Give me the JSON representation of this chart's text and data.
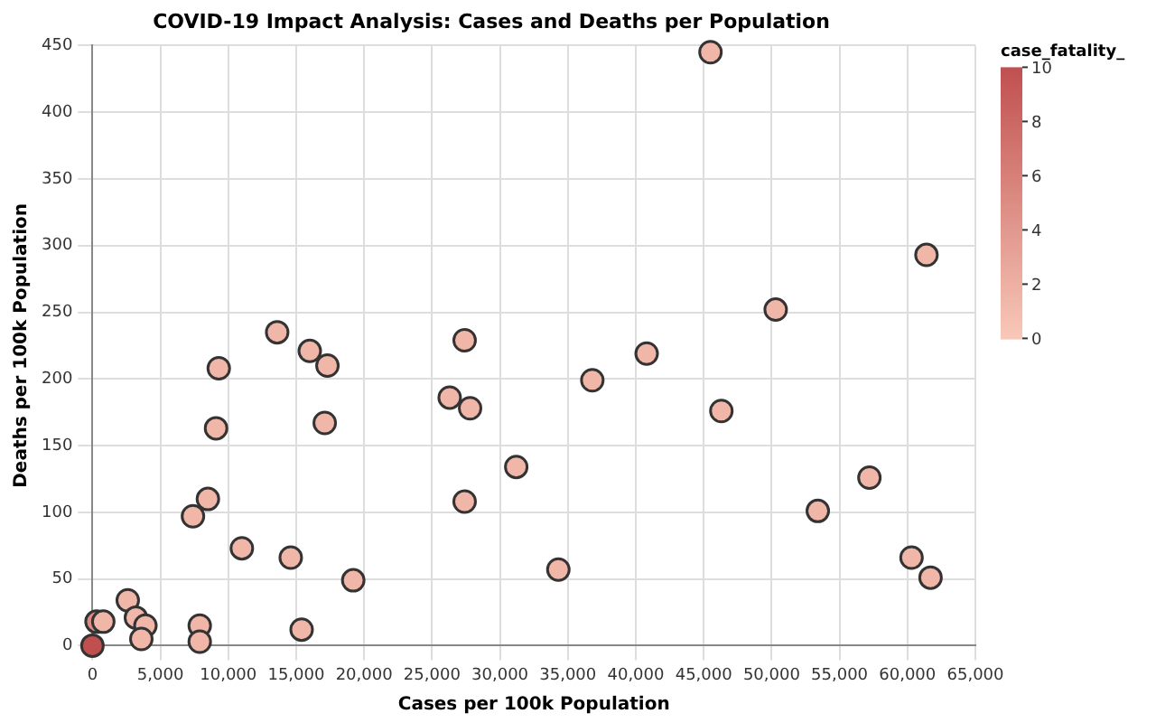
{
  "chart_data": {
    "type": "scatter",
    "title": "COVID-19 Impact Analysis: Cases and Deaths per Population",
    "xlabel": "Cases per 100k Population",
    "ylabel": "Deaths per 100k Population",
    "clabel": "case_fatality_",
    "x": [
      0,
      300,
      800,
      2600,
      3200,
      3900,
      3600,
      7900,
      7900,
      7400,
      8500,
      9100,
      9300,
      11000,
      13600,
      16000,
      17300,
      17100,
      14600,
      15400,
      19200,
      27400,
      26300,
      27800,
      27400,
      31200,
      34300,
      36800,
      40800,
      46300,
      45500,
      50300,
      53400,
      57200,
      60300,
      61700,
      61400
    ],
    "values": [
      0,
      18,
      18,
      34,
      21,
      15,
      5,
      15,
      3,
      97,
      110,
      163,
      208,
      73,
      235,
      221,
      210,
      167,
      66,
      12,
      49,
      229,
      186,
      178,
      108,
      134,
      57,
      199,
      219,
      176,
      445,
      252,
      101,
      126,
      66,
      51,
      293
    ],
    "cvalues": [
      10,
      5,
      1.5,
      1.5,
      1.5,
      1.5,
      1.5,
      1.5,
      1.5,
      1.5,
      1.5,
      1.5,
      1.5,
      1.5,
      1.5,
      1.5,
      1.5,
      1.5,
      1.5,
      1.5,
      1.5,
      1.5,
      1.5,
      1.5,
      1.5,
      1.5,
      1.5,
      1.5,
      1.5,
      1.5,
      1.5,
      1.5,
      1.5,
      1.5,
      1.5,
      1.5,
      1.5
    ],
    "xlim": [
      0,
      65000
    ],
    "xticks": [
      {
        "value": 0,
        "label": "0"
      },
      {
        "value": 5000,
        "label": "5,000"
      },
      {
        "value": 10000,
        "label": "10,000"
      },
      {
        "value": 15000,
        "label": "15,000"
      },
      {
        "value": 20000,
        "label": "20,000"
      },
      {
        "value": 25000,
        "label": "25,000"
      },
      {
        "value": 30000,
        "label": "30,000"
      },
      {
        "value": 35000,
        "label": "35,000"
      },
      {
        "value": 40000,
        "label": "40,000"
      },
      {
        "value": 45000,
        "label": "45,000"
      },
      {
        "value": 50000,
        "label": "50,000"
      },
      {
        "value": 55000,
        "label": "55,000"
      },
      {
        "value": 60000,
        "label": "60,000"
      },
      {
        "value": 65000,
        "label": "65,000"
      }
    ],
    "ylim": [
      0,
      450
    ],
    "yticks": [
      0,
      50,
      100,
      150,
      200,
      250,
      300,
      350,
      400,
      450
    ],
    "clim": [
      0,
      10
    ],
    "cticks": [
      0,
      2,
      4,
      6,
      8,
      10
    ],
    "grid": true,
    "marker": "circle"
  }
}
